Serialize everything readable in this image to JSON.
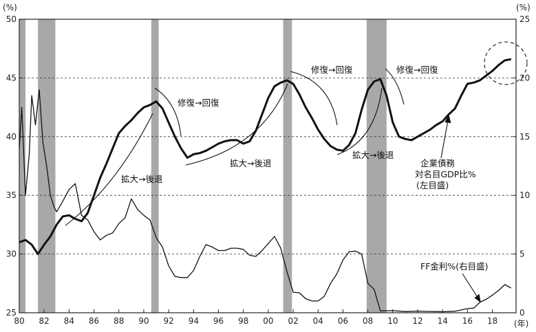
{
  "chart_data": {
    "type": "line",
    "left_unit": "(%)",
    "right_unit": "(%)",
    "x_unit": "(年)",
    "x_ticks": [
      "80",
      "82",
      "84",
      "86",
      "88",
      "90",
      "92",
      "94",
      "96",
      "98",
      "00",
      "02",
      "04",
      "06",
      "08",
      "10",
      "12",
      "14",
      "16",
      "18"
    ],
    "left_axis": {
      "ticks": [
        "25",
        "30",
        "35",
        "40",
        "45",
        "50"
      ],
      "ylim": [
        25,
        50
      ]
    },
    "right_axis": {
      "ticks": [
        "0",
        "5",
        "10",
        "15",
        "20",
        "25"
      ],
      "ylim": [
        0,
        25
      ]
    },
    "grid": "dashed horizontal lines at 30, 35, 40, 45 (left axis)",
    "recessions": [
      [
        1980.0,
        1980.5
      ],
      [
        1981.5,
        1982.9
      ],
      [
        1990.6,
        1991.2
      ],
      [
        2001.2,
        2001.9
      ],
      [
        2007.9,
        2009.5
      ]
    ],
    "series": [
      {
        "name": "企業債務対名目GDP比%(左目盛)",
        "axis": "left",
        "x": [
          1980,
          1980.5,
          1981,
          1981.5,
          1982,
          1982.5,
          1983,
          1983.5,
          1984,
          1984.5,
          1985,
          1985.5,
          1986,
          1986.5,
          1987,
          1987.5,
          1988,
          1988.5,
          1989,
          1989.5,
          1990,
          1990.5,
          1991,
          1991.5,
          1992,
          1992.5,
          1993,
          1993.5,
          1994,
          1994.5,
          1995,
          1995.5,
          1996,
          1996.5,
          1997,
          1997.5,
          1998,
          1998.5,
          1999,
          1999.5,
          2000,
          2000.5,
          2001,
          2001.5,
          2002,
          2002.5,
          2003,
          2003.5,
          2004,
          2004.5,
          2005,
          2005.5,
          2006,
          2006.5,
          2007,
          2007.5,
          2008,
          2008.5,
          2009,
          2009.5,
          2010,
          2010.5,
          2011,
          2011.5,
          2012,
          2012.5,
          2013,
          2013.5,
          2014,
          2014.5,
          2015,
          2015.5,
          2016,
          2016.5,
          2017,
          2017.5,
          2018,
          2018.5,
          2019,
          2019.5
        ],
        "values": [
          31.0,
          31.2,
          30.8,
          30.0,
          30.8,
          31.5,
          32.5,
          33.2,
          33.3,
          33.0,
          32.8,
          33.5,
          35.0,
          36.5,
          37.7,
          39.0,
          40.3,
          40.9,
          41.4,
          42.0,
          42.5,
          42.7,
          43.0,
          42.4,
          41.2,
          40.0,
          39.0,
          38.2,
          38.5,
          38.6,
          38.8,
          39.1,
          39.4,
          39.6,
          39.7,
          39.7,
          39.4,
          39.6,
          40.5,
          41.9,
          43.3,
          44.3,
          44.6,
          44.8,
          44.5,
          43.6,
          42.5,
          41.6,
          40.6,
          39.8,
          39.2,
          38.9,
          38.8,
          39.3,
          40.3,
          42.3,
          44.0,
          44.7,
          44.9,
          43.5,
          41.2,
          40.0,
          39.8,
          39.7,
          40.0,
          40.3,
          40.6,
          41.0,
          41.3,
          41.9,
          42.4,
          43.5,
          44.5,
          44.6,
          44.8,
          45.2,
          45.6,
          46.1,
          46.5,
          46.6
        ]
      },
      {
        "name": "FF金利%(右目盛)",
        "axis": "right",
        "x": [
          1980,
          1980.2,
          1980.5,
          1980.8,
          1981,
          1981.3,
          1981.6,
          1981.9,
          1982.2,
          1982.5,
          1982.8,
          1983,
          1983.5,
          1984,
          1984.5,
          1985,
          1985.5,
          1986,
          1986.5,
          1987,
          1987.5,
          1988,
          1988.5,
          1989,
          1989.5,
          1990,
          1990.5,
          1991,
          1991.5,
          1992,
          1992.5,
          1993,
          1993.5,
          1994,
          1994.5,
          1995,
          1995.5,
          1996,
          1996.5,
          1997,
          1997.5,
          1998,
          1998.5,
          1999,
          1999.5,
          2000,
          2000.5,
          2001,
          2001.5,
          2002,
          2002.5,
          2003,
          2003.5,
          2004,
          2004.5,
          2005,
          2005.5,
          2006,
          2006.5,
          2007,
          2007.5,
          2008,
          2008.5,
          2009,
          2010,
          2011,
          2012,
          2013,
          2014,
          2015,
          2015.5,
          2016,
          2016.5,
          2017,
          2017.5,
          2018,
          2018.5,
          2019,
          2019.5
        ],
        "values": [
          14.0,
          17.5,
          10.0,
          13.5,
          18.5,
          16.0,
          19.0,
          14.5,
          12.5,
          10.0,
          9.0,
          8.6,
          9.5,
          10.5,
          11.0,
          8.3,
          7.9,
          6.9,
          6.2,
          6.6,
          6.8,
          7.6,
          8.1,
          9.7,
          8.8,
          8.3,
          7.9,
          6.4,
          5.6,
          4.0,
          3.1,
          3.0,
          3.0,
          3.6,
          4.8,
          5.8,
          5.6,
          5.3,
          5.3,
          5.5,
          5.5,
          5.4,
          4.9,
          4.8,
          5.3,
          5.9,
          6.5,
          5.5,
          3.5,
          1.75,
          1.7,
          1.2,
          1.0,
          1.0,
          1.4,
          2.5,
          3.3,
          4.5,
          5.2,
          5.25,
          5.0,
          2.5,
          2.0,
          0.16,
          0.18,
          0.1,
          0.14,
          0.11,
          0.09,
          0.13,
          0.24,
          0.36,
          0.39,
          0.9,
          1.15,
          1.5,
          1.9,
          2.4,
          2.1
        ]
      }
    ],
    "annotations": {
      "label_1": "修復→回復",
      "label_2": "拡大→後退",
      "label_3": "修復→回復",
      "label_4": "拡大→後退",
      "label_5": "修復→回復",
      "label_6": "拡大→後退",
      "label_7": "修復→回復",
      "corp_label_1": "企業債務",
      "corp_label_2": "対名目GDP比%",
      "corp_label_3": "(左目盛)",
      "ff_label": "FF金利%(右目盛)"
    }
  }
}
